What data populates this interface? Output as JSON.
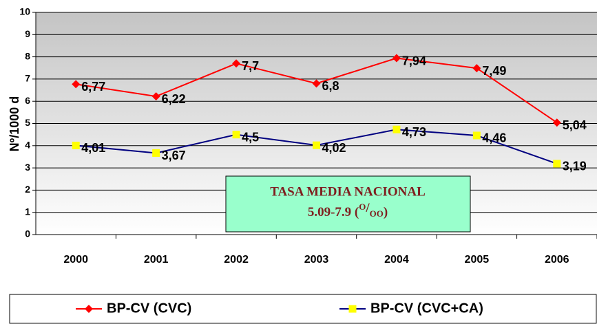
{
  "chart_data": {
    "type": "line",
    "y_label": "Nº/1000 d",
    "categories": [
      "2000",
      "2001",
      "2002",
      "2003",
      "2004",
      "2005",
      "2006"
    ],
    "series": [
      {
        "name": "BP-CV (CVC)",
        "color": "#ff0000",
        "marker": "diamond",
        "marker_color": "#ff0000",
        "values": [
          6.77,
          6.22,
          7.7,
          6.8,
          7.94,
          7.49,
          5.04
        ],
        "value_labels": [
          "6,77",
          "6,22",
          "7,7",
          "6,8",
          "7,94",
          "7,49",
          "5,04"
        ]
      },
      {
        "name": "BP-CV (CVC+CA)",
        "color": "#000080",
        "marker": "square",
        "marker_color": "#ffff00",
        "values": [
          4.01,
          3.67,
          4.5,
          4.02,
          4.73,
          4.46,
          3.19
        ],
        "value_labels": [
          "4,01",
          "3,67",
          "4,5",
          "4,02",
          "4,73",
          "4,46",
          "3,19"
        ]
      }
    ],
    "ylim": [
      0,
      10
    ],
    "yticks": [
      0,
      1,
      2,
      3,
      4,
      5,
      6,
      7,
      8,
      9,
      10
    ],
    "grid": true,
    "legend": "bottom",
    "annotation": {
      "title": "TASA MEDIA NACIONAL",
      "range": "5.09-7.9 (",
      "sup": "O",
      "slash": "/",
      "sub": "OO",
      "close": ")"
    }
  }
}
